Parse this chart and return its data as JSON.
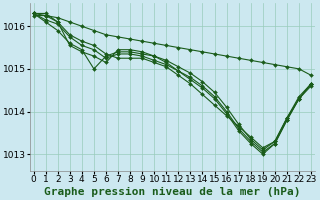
{
  "background_color": "#cce8f0",
  "grid_color": "#99ccbb",
  "line_color": "#1a5c1a",
  "marker_color": "#1a5c1a",
  "title": "Graphe pression niveau de la mer (hPa)",
  "xlabel_hours": [
    0,
    1,
    2,
    3,
    4,
    5,
    6,
    7,
    8,
    9,
    10,
    11,
    12,
    13,
    14,
    15,
    16,
    17,
    18,
    19,
    20,
    21,
    22,
    23
  ],
  "series": [
    [
      1016.3,
      1016.3,
      1016.1,
      1015.8,
      1015.65,
      1015.55,
      1015.35,
      1015.25,
      1015.25,
      1015.25,
      1015.15,
      1015.05,
      1014.85,
      1014.65,
      1014.4,
      1014.15,
      1013.9,
      1013.65,
      1013.4,
      1013.15,
      1013.3,
      1013.85,
      1014.35,
      1014.65
    ],
    [
      1016.3,
      1016.1,
      1015.9,
      1015.6,
      1015.45,
      1015.0,
      1015.3,
      1015.4,
      1015.4,
      1015.35,
      1015.3,
      1015.2,
      1015.05,
      1014.9,
      1014.7,
      1014.45,
      1014.1,
      1013.7,
      1013.35,
      1013.1,
      1013.3,
      1013.85,
      1014.3,
      1014.65
    ],
    [
      1016.3,
      1016.15,
      1016.05,
      1015.75,
      1015.55,
      1015.45,
      1015.25,
      1015.35,
      1015.35,
      1015.3,
      1015.2,
      1015.1,
      1014.95,
      1014.8,
      1014.6,
      1014.35,
      1014.0,
      1013.6,
      1013.3,
      1013.05,
      1013.25,
      1013.8,
      1014.3,
      1014.65
    ],
    [
      1016.3,
      1016.25,
      1016.1,
      1015.55,
      1015.4,
      1015.3,
      1015.15,
      1015.45,
      1015.45,
      1015.4,
      1015.3,
      1015.15,
      1014.95,
      1014.75,
      1014.55,
      1014.3,
      1013.95,
      1013.55,
      1013.25,
      1013.0,
      1013.25,
      1013.8,
      1014.3,
      1014.6
    ]
  ],
  "series_flat": [
    1016.25,
    1016.25,
    1016.2,
    1016.1,
    1016.0,
    1015.9,
    1015.8,
    1015.75,
    1015.7,
    1015.65,
    1015.6,
    1015.55,
    1015.5,
    1015.45,
    1015.4,
    1015.35,
    1015.3,
    1015.25,
    1015.2,
    1015.15,
    1015.1,
    1015.05,
    1015.0,
    1014.85
  ],
  "ylim": [
    1012.6,
    1016.55
  ],
  "yticks": [
    1013,
    1014,
    1015,
    1016
  ],
  "title_fontsize": 8,
  "tick_fontsize": 6.5
}
